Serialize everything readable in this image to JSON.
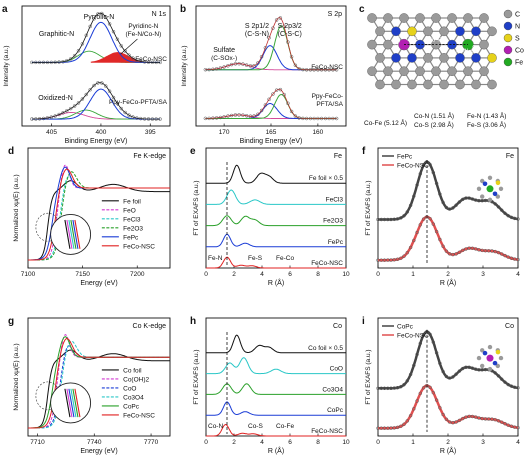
{
  "figure": {
    "panels": [
      {
        "id": "a",
        "letter": "a",
        "chart_data": {
          "type": "line",
          "title": "N 1s",
          "xlabel": "Binding Energy (eV)",
          "ylabel": "Intensity (a.u.)",
          "xlim": [
            408,
            393
          ],
          "xticks": [
            "405",
            "400",
            "395"
          ],
          "series_labels": [
            "FeCo-NSC",
            "Ppy-FeCo-PFTA/SA"
          ],
          "annotations": [
            "Pyrrolic-N",
            "Graphitic-N",
            "Pyridinc-N (Fe-N/Co-N)",
            "Oxidized-N"
          ],
          "colors": {
            "pyrrolic": "#1a3cd6",
            "graphitic": "#3aa63a",
            "pyridinic_fill": "#e02828",
            "oxidized": "#d44a9a",
            "envelope": "#111111"
          }
        }
      },
      {
        "id": "b",
        "letter": "b",
        "chart_data": {
          "type": "line",
          "title": "S 2p",
          "xlabel": "Binding Energy (eV)",
          "ylabel": "Intensity (a.u.)",
          "xlim": [
            173,
            157
          ],
          "xticks": [
            "170",
            "165",
            "160"
          ],
          "series_labels": [
            "FeCo-NSC",
            "Ppy-FeCo-PFTA/SA"
          ],
          "annotations": [
            "S 2p1/2",
            "(C-S-N)",
            "S 2p3/2",
            "(C-S-C)",
            "Sulfate",
            "(C-SOx-)"
          ],
          "colors": {
            "s2p12": "#1a3cd6",
            "s2p32": "#3aa63a",
            "sulfate": "#d44a9a"
          }
        }
      },
      {
        "id": "c",
        "letter": "c",
        "legend": [
          "C",
          "N",
          "S",
          "Co",
          "Fe"
        ],
        "legend_colors": [
          "#9a9a9a",
          "#1f3fc7",
          "#e6d21a",
          "#b21fb2",
          "#22aa22"
        ],
        "labels": [
          "Co-N",
          "Co-S",
          "Co-Fe",
          "Fe-N",
          "Fe-S"
        ],
        "distances": [
          "Co-Fe (5.12 Å)",
          "Co-N (1.51 Å)",
          "Co-S (2.98 Å)",
          "Fe-N (1.43 Å)",
          "Fe-S (3.06 Å)"
        ]
      },
      {
        "id": "d",
        "letter": "d",
        "chart_data": {
          "type": "line",
          "title": "Fe K-edge",
          "xlabel": "Energy (eV)",
          "ylabel": "Normalized xμ(E) (a.u.)",
          "xlim": [
            7100,
            7230
          ],
          "xticks": [
            "7100",
            "7150",
            "7200"
          ],
          "legend": [
            "Fe foil",
            "FeO",
            "FeCl3",
            "Fe2O3",
            "FePc",
            "FeCo-NSC"
          ],
          "legend_colors": [
            "#111111",
            "#d23ad2",
            "#2ac7c7",
            "#2aa02a",
            "#1a3cd6",
            "#e02020"
          ]
        }
      },
      {
        "id": "e",
        "letter": "e",
        "chart_data": {
          "type": "line",
          "title": "Fe",
          "xlabel": "R (Å)",
          "ylabel": "FT of EXAFS (a.u.)",
          "xlim": [
            0,
            10
          ],
          "xticks": [
            "0",
            "2",
            "4",
            "6",
            "8",
            "10"
          ],
          "series_labels": [
            "Fe foil × 0.5",
            "FeCl3",
            "Fe2O3",
            "FePc",
            "FeCo-NSC"
          ],
          "annotations": [
            "Fe-N",
            "Fe-S",
            "Fe-Co"
          ],
          "colors": [
            "#111111",
            "#2ac7c7",
            "#2aa02a",
            "#1a3cd6",
            "#e02020"
          ]
        }
      },
      {
        "id": "f",
        "letter": "f",
        "chart_data": {
          "type": "line",
          "title": "Fe",
          "xlabel": "R (Å)",
          "ylabel": "FT of EXAFS (a.u.)",
          "xlim": [
            0,
            4
          ],
          "xticks": [
            "0",
            "1",
            "2",
            "3",
            "4"
          ],
          "legend": [
            "FePc",
            "FeCo-NSC"
          ],
          "legend_colors": [
            "#444444",
            "#e05050"
          ]
        }
      },
      {
        "id": "g",
        "letter": "g",
        "chart_data": {
          "type": "line",
          "title": "Co K-edge",
          "xlabel": "Energy (eV)",
          "ylabel": "Normalized xμ(E) (a.u.)",
          "xlim": [
            7705,
            7780
          ],
          "xticks": [
            "7710",
            "7740",
            "7770"
          ],
          "legend": [
            "Co foil",
            "Co(OH)2",
            "CoO",
            "Co3O4",
            "CoPc",
            "FeCo-NSC"
          ],
          "legend_colors": [
            "#111111",
            "#d23ad2",
            "#1a3cd6",
            "#2ac7c7",
            "#2aa02a",
            "#e02020"
          ]
        }
      },
      {
        "id": "h",
        "letter": "h",
        "chart_data": {
          "type": "line",
          "title": "Co",
          "xlabel": "R (Å)",
          "ylabel": "FT of EXAFS (a.u.)",
          "xlim": [
            0,
            10
          ],
          "xticks": [
            "0",
            "2",
            "4",
            "6",
            "8",
            "10"
          ],
          "series_labels": [
            "Co foil × 0.5",
            "CoO",
            "Co3O4",
            "CoPc",
            "FeCo-NSC"
          ],
          "annotations": [
            "Co-N",
            "Co-S",
            "Co-Fe"
          ],
          "colors": [
            "#111111",
            "#2ac7c7",
            "#2aa02a",
            "#1a3cd6",
            "#e02020"
          ]
        }
      },
      {
        "id": "i",
        "letter": "i",
        "chart_data": {
          "type": "line",
          "title": "Co",
          "xlabel": "R (Å)",
          "ylabel": "FT of EXAFS (a.u.)",
          "xlim": [
            0,
            4
          ],
          "xticks": [
            "0",
            "1",
            "2",
            "3",
            "4"
          ],
          "legend": [
            "CoPc",
            "FeCo-NSC"
          ],
          "legend_colors": [
            "#444444",
            "#e05050"
          ]
        }
      }
    ]
  }
}
